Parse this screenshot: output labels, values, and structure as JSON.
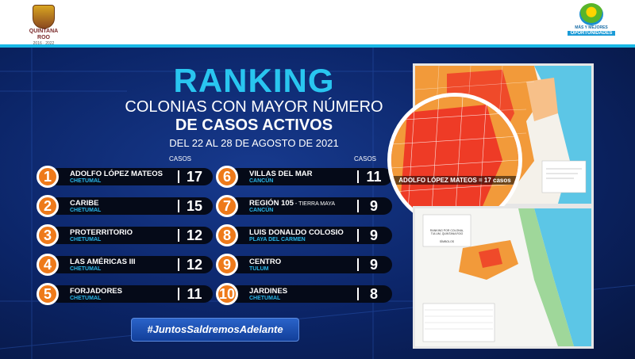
{
  "header": {
    "logo_left_line1": "QUINTANA ROO",
    "logo_left_line2": "2016 · 2022",
    "logo_right_line1": "MÁS Y MEJORES",
    "logo_right_line2": "OPORTUNIDADES"
  },
  "title": {
    "ranking": "RANKING",
    "line1": "COLONIAS CON MAYOR NÚMERO",
    "line2": "DE CASOS ACTIVOS",
    "date_range": "DEL 22 AL 28 DE AGOSTO DE 2021"
  },
  "casos_label": "CASOS",
  "ranking_left": [
    {
      "rank": "1",
      "name": "ADOLFO LÓPEZ MATEOS",
      "suffix": "",
      "city": "CHETUMAL",
      "cases": "17"
    },
    {
      "rank": "2",
      "name": "CARIBE",
      "suffix": "",
      "city": "CHETUMAL",
      "cases": "15"
    },
    {
      "rank": "3",
      "name": "PROTERRITORIO",
      "suffix": "",
      "city": "CHETUMAL",
      "cases": "12"
    },
    {
      "rank": "4",
      "name": "LAS AMÉRICAS III",
      "suffix": "",
      "city": "CHETUMAL",
      "cases": "12"
    },
    {
      "rank": "5",
      "name": "FORJADORES",
      "suffix": "",
      "city": "CHETUMAL",
      "cases": "11"
    }
  ],
  "ranking_right": [
    {
      "rank": "6",
      "name": "VILLAS DEL MAR",
      "suffix": "",
      "city": "CANCÚN",
      "cases": "11"
    },
    {
      "rank": "7",
      "name": "REGIÓN 105",
      "suffix": " - TIERRA MAYA",
      "city": "CANCÚN",
      "cases": "9"
    },
    {
      "rank": "8",
      "name": "LUIS DONALDO COLOSIO",
      "suffix": "",
      "city": "PLAYA DEL CARMEN",
      "cases": "9"
    },
    {
      "rank": "9",
      "name": "CENTRO",
      "suffix": "",
      "city": "TULUM",
      "cases": "9"
    },
    {
      "rank": "10",
      "name": "JARDINES",
      "suffix": "",
      "city": "CHETUMAL",
      "cases": "8"
    }
  ],
  "hashtag": "#JuntosSaldremosAdelante",
  "map_top": {
    "callout": "ADOLFO LÓPEZ MATEOS = 17 casos"
  },
  "map_bottom": {
    "title": "RANKING POR COLONIA, TULUM, QUINTANA ROO",
    "legend_title": "SÍMBOLOS"
  },
  "colors": {
    "accent_cyan": "#29c6f0",
    "rank_orange": "#ee7a1a",
    "city_blue": "#29b6e8",
    "background_navy": "#0b2466"
  }
}
